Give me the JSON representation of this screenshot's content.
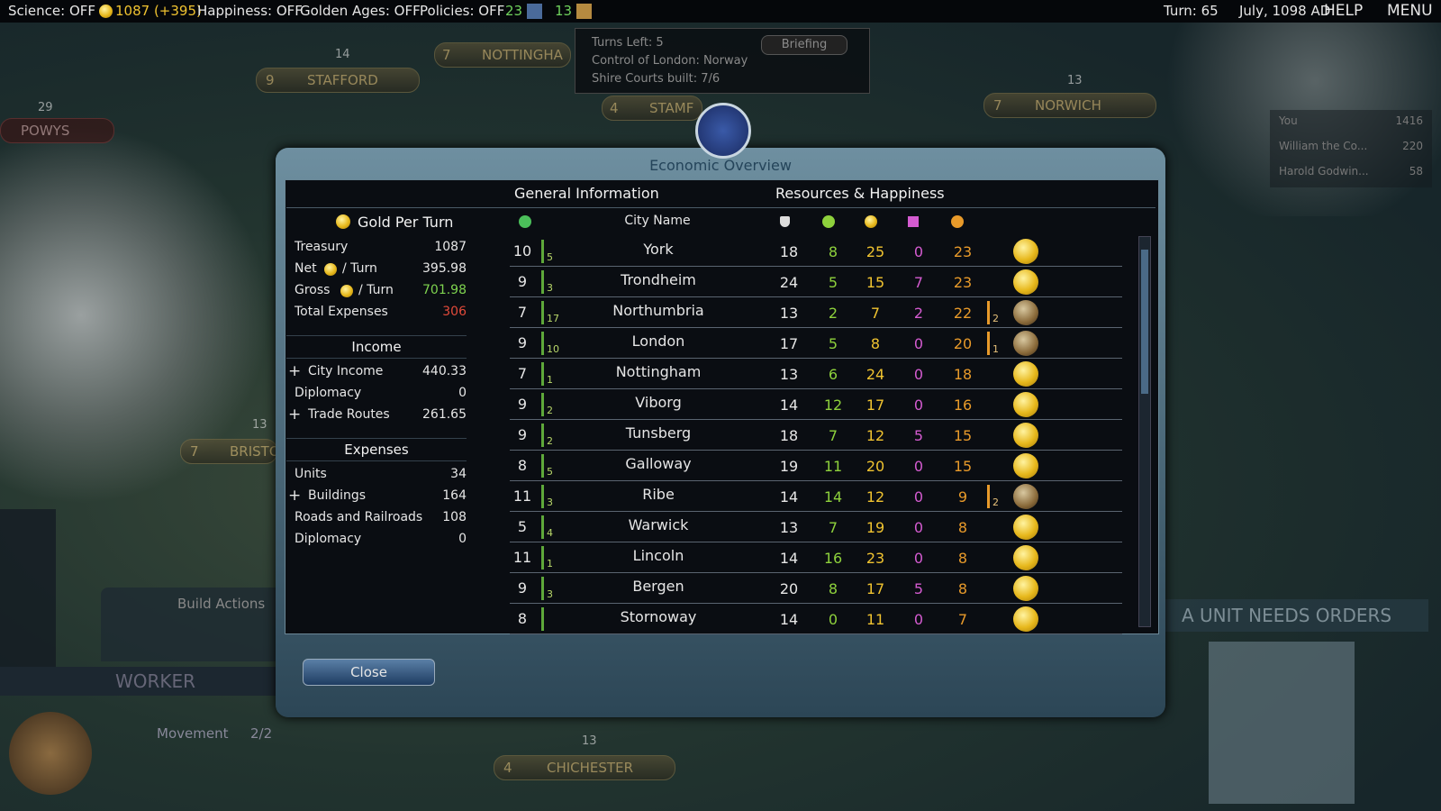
{
  "top_bar": {
    "science": "Science: OFF",
    "gold": "1087 (+395)",
    "happiness": "Happiness: OFF",
    "golden_ages": "Golden Ages: OFF",
    "policies": "Policies: OFF",
    "culture_a": "23",
    "culture_b": "13",
    "turn": "Turn: 65",
    "date": "July, 1098 AD",
    "help": "HELP",
    "menu": "MENU"
  },
  "briefing": {
    "turns_left": "Turns Left: 5",
    "control": "Control of London: Norway",
    "courts": "Shire Courts built: 7/6",
    "button": "Briefing"
  },
  "scores": [
    {
      "name": "You",
      "score": "1416"
    },
    {
      "name": "William the Co...",
      "score": "220"
    },
    {
      "name": "Harold Godwin...",
      "score": "58"
    }
  ],
  "map_labels": {
    "stafford": "STAFFORD",
    "stafford_pop": "9",
    "nottingham": "NOTTINGHA",
    "nottingham_pop": "7",
    "powys": "POWYS",
    "norwich": "NORWICH",
    "norwich_pop": "7",
    "bristol": "BRISTO",
    "bristol_pop": "7",
    "chichester": "CHICHESTER",
    "chichester_pop": "4",
    "stamford": "STAMF",
    "stamford_pop": "4",
    "def_a": "14",
    "def_b": "29",
    "def_c": "13",
    "def_d": "13",
    "def_e": "13"
  },
  "unit_panel": {
    "build_actions": "Build Actions",
    "unit_name": "WORKER",
    "movement": "Movement",
    "moves": "2/2",
    "needs_orders": "A UNIT NEEDS ORDERS"
  },
  "dialog": {
    "title": "Economic Overview",
    "tab_general": "General Information",
    "tab_resources": "Resources & Happiness",
    "gold_header": "Gold Per Turn",
    "summary": [
      {
        "label": "Treasury",
        "value": "1087"
      },
      {
        "label": "Net",
        "suffix": "/ Turn",
        "value": "395.98"
      },
      {
        "label": "Gross",
        "suffix": "/ Turn",
        "value": "701.98"
      },
      {
        "label": "Total Expenses",
        "value": "306"
      }
    ],
    "income_header": "Income",
    "income": [
      {
        "label": "City Income",
        "value": "440.33",
        "expand": "+"
      },
      {
        "label": "Diplomacy",
        "value": "0"
      },
      {
        "label": "Trade Routes",
        "value": "261.65",
        "expand": "+"
      }
    ],
    "expenses_header": "Expenses",
    "expenses": [
      {
        "label": "Units",
        "value": "34"
      },
      {
        "label": "Buildings",
        "value": "164",
        "expand": "+"
      },
      {
        "label": "Roads and Railroads",
        "value": "108"
      },
      {
        "label": "Diplomacy",
        "value": "0"
      }
    ],
    "city_name_header": "City Name",
    "cities": [
      {
        "pop": "10",
        "growth": "5",
        "name": "York",
        "c1": "18",
        "c2": "8",
        "c3": "25",
        "c4": "0",
        "c5": "23",
        "build": null
      },
      {
        "pop": "9",
        "growth": "3",
        "name": "Trondheim",
        "c1": "24",
        "c2": "5",
        "c3": "15",
        "c4": "7",
        "c5": "23",
        "build": null
      },
      {
        "pop": "7",
        "growth": "17",
        "name": "Northumbria",
        "c1": "13",
        "c2": "2",
        "c3": "7",
        "c4": "2",
        "c5": "22",
        "build": "2"
      },
      {
        "pop": "9",
        "growth": "10",
        "name": "London",
        "c1": "17",
        "c2": "5",
        "c3": "8",
        "c4": "0",
        "c5": "20",
        "build": "1"
      },
      {
        "pop": "7",
        "growth": "1",
        "name": "Nottingham",
        "c1": "13",
        "c2": "6",
        "c3": "24",
        "c4": "0",
        "c5": "18",
        "build": null
      },
      {
        "pop": "9",
        "growth": "2",
        "name": "Viborg",
        "c1": "14",
        "c2": "12",
        "c3": "17",
        "c4": "0",
        "c5": "16",
        "build": null
      },
      {
        "pop": "9",
        "growth": "2",
        "name": "Tunsberg",
        "c1": "18",
        "c2": "7",
        "c3": "12",
        "c4": "5",
        "c5": "15",
        "build": null
      },
      {
        "pop": "8",
        "growth": "5",
        "name": "Galloway",
        "c1": "19",
        "c2": "11",
        "c3": "20",
        "c4": "0",
        "c5": "15",
        "build": null
      },
      {
        "pop": "11",
        "growth": "3",
        "name": "Ribe",
        "c1": "14",
        "c2": "14",
        "c3": "12",
        "c4": "0",
        "c5": "9",
        "build": "2"
      },
      {
        "pop": "5",
        "growth": "4",
        "name": "Warwick",
        "c1": "13",
        "c2": "7",
        "c3": "19",
        "c4": "0",
        "c5": "8",
        "build": null
      },
      {
        "pop": "11",
        "growth": "1",
        "name": "Lincoln",
        "c1": "14",
        "c2": "16",
        "c3": "23",
        "c4": "0",
        "c5": "8",
        "build": null
      },
      {
        "pop": "9",
        "growth": "3",
        "name": "Bergen",
        "c1": "20",
        "c2": "8",
        "c3": "17",
        "c4": "5",
        "c5": "8",
        "build": null
      },
      {
        "pop": "8",
        "growth": null,
        "name": "Stornoway",
        "c1": "14",
        "c2": "0",
        "c3": "11",
        "c4": "0",
        "c5": "7",
        "build": null
      }
    ],
    "close": "Close"
  }
}
